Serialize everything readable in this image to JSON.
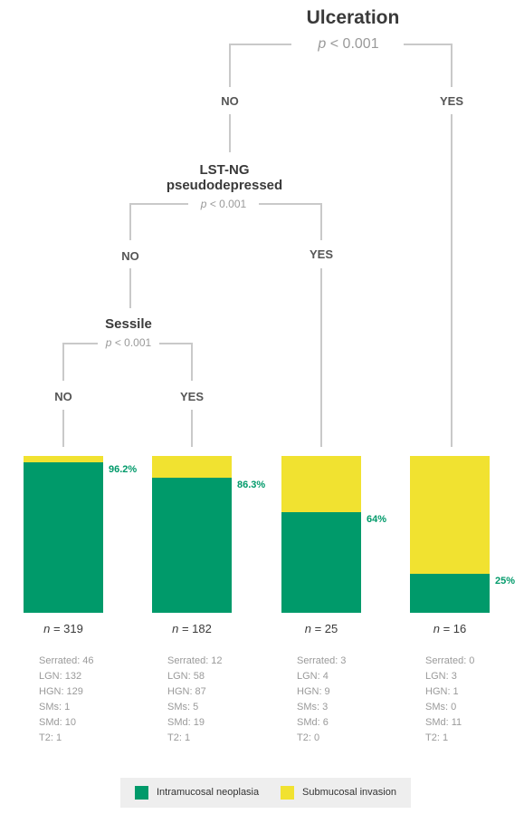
{
  "colors": {
    "intramucosal": "#009a6a",
    "submucosal": "#f1e230",
    "line": "#c9c9c9"
  },
  "nodes": {
    "ulceration": {
      "title": "Ulceration",
      "p_symbol": "p",
      "p_value": "< 0.001"
    },
    "lst": {
      "title_line1": "LST-NG",
      "title_line2": "pseudodepressed",
      "p_symbol": "p",
      "p_value": "< 0.001"
    },
    "sessile": {
      "title": "Sessile",
      "p_symbol": "p",
      "p_value": "< 0.001"
    }
  },
  "branches": {
    "ulceration_no": "NO",
    "ulceration_yes": "YES",
    "lst_no": "NO",
    "lst_yes": "YES",
    "sessile_no": "NO",
    "sessile_yes": "YES"
  },
  "chart_data": {
    "type": "bar",
    "stacked": true,
    "normalized_percent": true,
    "series": [
      {
        "name": "Intramucosal neoplasia",
        "values": [
          96.2,
          86.3,
          64,
          25
        ]
      },
      {
        "name": "Submucosal invasion",
        "values": [
          3.8,
          13.7,
          36,
          75
        ]
      }
    ],
    "data_labels": [
      "96.2%",
      "86.3%",
      "64%",
      "25%"
    ],
    "ylim": [
      0,
      100
    ]
  },
  "groups": [
    {
      "n_symbol": "n",
      "n_value": "= 319",
      "stats": [
        "Serrated: 46",
        "LGN: 132",
        "HGN: 129",
        "SMs: 1",
        "SMd: 10",
        "T2: 1"
      ]
    },
    {
      "n_symbol": "n",
      "n_value": "= 182",
      "stats": [
        "Serrated: 12",
        "LGN: 58",
        "HGN: 87",
        "SMs: 5",
        "SMd: 19",
        "T2: 1"
      ]
    },
    {
      "n_symbol": "n",
      "n_value": "= 25",
      "stats": [
        "Serrated: 3",
        "LGN: 4",
        "HGN: 9",
        "SMs: 3",
        "SMd: 6",
        "T2: 0"
      ]
    },
    {
      "n_symbol": "n",
      "n_value": "= 16",
      "stats": [
        "Serrated: 0",
        "LGN: 3",
        "HGN: 1",
        "SMs: 0",
        "SMd: 11",
        "T2: 1"
      ]
    }
  ],
  "legend": {
    "intramucosal_label": "Intramucosal neoplasia",
    "submucosal_label": "Submucosal invasion"
  }
}
